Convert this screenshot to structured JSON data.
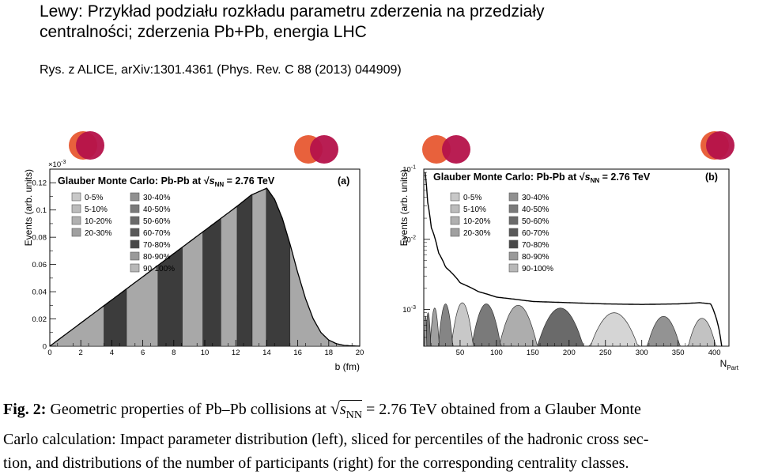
{
  "slide": {
    "title_line1": "Lewy: Przykład podziału rozkładu parametru zderzenia na przedziały",
    "title_line2": "centralności; zderzenia Pb+Pb, energia LHC",
    "reference": "Rys. z ALICE, arXiv:1301.4361 (Phys. Rev. C 88 (2013) 044909)"
  },
  "caption": {
    "fig_label": "Fig. 2:",
    "line1_pre": "Geometric properties of Pb–Pb collisions at",
    "sqrt_s": "s",
    "sqrt_sub": "NN",
    "line1_post": "= 2.76 TeV obtained from a Glauber Monte",
    "line2": "Carlo calculation: Impact parameter distribution (left), sliced for percentiles of the hadronic cross sec-",
    "line3": "tion, and distributions of the number of participants (right) for the corresponding centrality classes."
  },
  "colors": {
    "overlap_orange": "#e8613c",
    "overlap_crimson": "#b5124a",
    "light_gray": "#b4b4b4",
    "dark_gray": "#3a3a3a",
    "mid_gray": "#8c8c8c"
  },
  "chart_data": [
    {
      "type": "area",
      "panel": "(a)",
      "title_prefix": "Glauber Monte Carlo: Pb-Pb at ",
      "title_s": "s",
      "title_sub": "NN",
      "title_suffix": " = 2.76 TeV",
      "xlabel": "b (fm)",
      "ylabel": "Events (arb. units)",
      "yexponent": "×10",
      "yexponent_power": "-3",
      "xlim": [
        0,
        20
      ],
      "ylim": [
        0,
        0.13
      ],
      "xticks": [
        "0",
        "2",
        "4",
        "6",
        "8",
        "10",
        "12",
        "14",
        "16",
        "18",
        "20"
      ],
      "yticks": [
        "0",
        "0.02",
        "0.04",
        "0.06",
        "0.08",
        "0.1",
        "0.12"
      ],
      "curve": {
        "b": [
          0,
          1,
          2,
          3,
          4,
          5,
          6,
          7,
          8,
          9,
          10,
          11,
          12,
          13,
          14,
          14.5,
          15,
          15.5,
          16,
          16.5,
          17,
          17.5,
          18,
          18.5,
          19,
          19.5,
          20
        ],
        "events": [
          0,
          0.0085,
          0.017,
          0.0255,
          0.034,
          0.0425,
          0.051,
          0.0595,
          0.068,
          0.0765,
          0.085,
          0.0935,
          0.102,
          0.111,
          0.116,
          0.108,
          0.094,
          0.075,
          0.054,
          0.035,
          0.02,
          0.01,
          0.0045,
          0.0018,
          0.0006,
          0.0002,
          0
        ]
      },
      "slice_edges": [
        0,
        3.5,
        4.95,
        6.98,
        8.55,
        9.88,
        11.04,
        12.09,
        13.06,
        13.97,
        15.5,
        20
      ],
      "legend_left": [
        "0-5%",
        "5-10%",
        "10-20%",
        "20-30%"
      ],
      "legend_right": [
        "30-40%",
        "40-50%",
        "50-60%",
        "60-70%",
        "70-80%",
        "80-90%",
        "90-100%"
      ]
    },
    {
      "type": "area",
      "panel": "(b)",
      "title_prefix": "Glauber Monte Carlo: Pb-Pb at ",
      "title_s": "s",
      "title_sub": "NN",
      "title_suffix": " = 2.76 TeV",
      "xlabel": "N",
      "xlabel_sub": "Part",
      "ylabel": "Events (arb. units)",
      "xlim": [
        0,
        420
      ],
      "ylog": true,
      "ylim": [
        0.0003,
        0.1
      ],
      "xticks": [
        "50",
        "100",
        "150",
        "200",
        "250",
        "300",
        "350",
        "400"
      ],
      "yticks": [
        {
          "base": "10",
          "exp": "-3",
          "value": 0.001
        },
        {
          "base": "10",
          "exp": "-2",
          "value": 0.01
        },
        {
          "base": "10",
          "exp": "-1",
          "value": 0.1
        }
      ],
      "total_curve": {
        "npart": [
          2,
          5,
          10,
          20,
          30,
          50,
          75,
          100,
          150,
          200,
          250,
          300,
          350,
          380,
          395,
          405,
          410
        ],
        "events": [
          0.09,
          0.035,
          0.015,
          0.0065,
          0.004,
          0.0024,
          0.0018,
          0.0015,
          0.0013,
          0.00125,
          0.0012,
          0.00118,
          0.0012,
          0.00125,
          0.0012,
          0.0006,
          0.0003
        ]
      },
      "class_peaks": {
        "centers": [
          383,
          330,
          262,
          188,
          130,
          86,
          53,
          30,
          15,
          6,
          2.5
        ],
        "widths": [
          14,
          16,
          22,
          20,
          16,
          12,
          9,
          6,
          4,
          2.5,
          1.2
        ],
        "peaks": [
          0.00075,
          0.0008,
          0.0009,
          0.00105,
          0.00115,
          0.0012,
          0.00125,
          0.0012,
          0.00105,
          0.0009,
          0.0008
        ],
        "classes": [
          "0-5%",
          "5-10%",
          "10-20%",
          "20-30%",
          "30-40%",
          "40-50%",
          "50-60%",
          "60-70%",
          "70-80%",
          "80-90%",
          "90-100%"
        ]
      },
      "legend_left": [
        "0-5%",
        "5-10%",
        "10-20%",
        "20-30%"
      ],
      "legend_right": [
        "30-40%",
        "40-50%",
        "50-60%",
        "60-70%",
        "70-80%",
        "80-90%",
        "90-100%"
      ]
    }
  ]
}
